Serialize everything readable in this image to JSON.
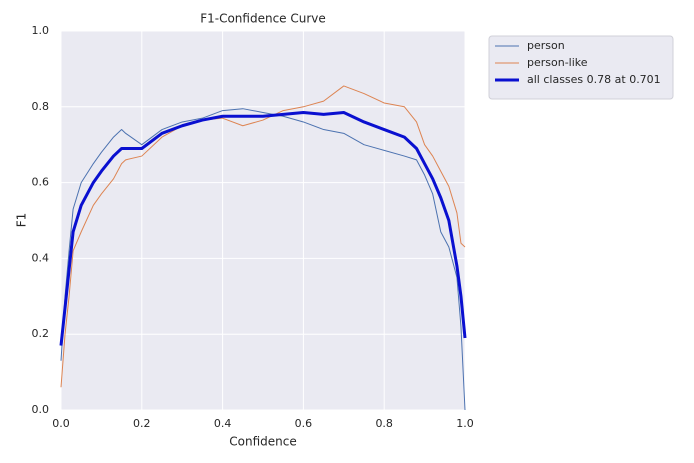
{
  "chart_data": {
    "type": "line",
    "title": "F1-Confidence Curve",
    "x_label": "Confidence",
    "y_label": "F1",
    "x": [
      0,
      0.01,
      0.02,
      0.03,
      0.05,
      0.08,
      0.1,
      0.13,
      0.15,
      0.16,
      0.2,
      0.25,
      0.3,
      0.35,
      0.4,
      0.45,
      0.5,
      0.55,
      0.6,
      0.65,
      0.7,
      0.75,
      0.8,
      0.85,
      0.88,
      0.9,
      0.92,
      0.94,
      0.96,
      0.98,
      0.99,
      1.0
    ],
    "series": [
      {
        "name": "person",
        "color": "#4c72b0",
        "width": 1,
        "values": [
          0.13,
          0.3,
          0.42,
          0.53,
          0.6,
          0.65,
          0.68,
          0.72,
          0.74,
          0.73,
          0.7,
          0.74,
          0.76,
          0.77,
          0.79,
          0.795,
          0.785,
          0.775,
          0.76,
          0.74,
          0.73,
          0.7,
          0.685,
          0.67,
          0.66,
          0.62,
          0.57,
          0.47,
          0.43,
          0.35,
          0.22,
          0.0
        ]
      },
      {
        "name": "person-like",
        "color": "#dd8452",
        "width": 1,
        "values": [
          0.06,
          0.2,
          0.3,
          0.42,
          0.47,
          0.54,
          0.57,
          0.61,
          0.65,
          0.66,
          0.67,
          0.72,
          0.75,
          0.765,
          0.77,
          0.75,
          0.765,
          0.79,
          0.8,
          0.815,
          0.855,
          0.835,
          0.81,
          0.8,
          0.76,
          0.7,
          0.67,
          0.63,
          0.59,
          0.52,
          0.44,
          0.43
        ]
      },
      {
        "name": "all classes 0.78 at 0.701",
        "color": "#0a10d0",
        "width": 3,
        "values": [
          0.17,
          0.27,
          0.37,
          0.47,
          0.54,
          0.6,
          0.63,
          0.67,
          0.69,
          0.69,
          0.69,
          0.73,
          0.75,
          0.765,
          0.775,
          0.775,
          0.775,
          0.78,
          0.785,
          0.78,
          0.785,
          0.76,
          0.74,
          0.72,
          0.69,
          0.65,
          0.61,
          0.56,
          0.5,
          0.38,
          0.3,
          0.19
        ]
      }
    ],
    "xlim": [
      0,
      1
    ],
    "ylim": [
      0,
      1
    ],
    "xticks": [
      {
        "value": 0,
        "label": "0.0"
      },
      {
        "value": 0.2,
        "label": "0.2"
      },
      {
        "value": 0.4,
        "label": "0.4"
      },
      {
        "value": 0.6,
        "label": "0.6"
      },
      {
        "value": 0.8,
        "label": "0.8"
      },
      {
        "value": 1,
        "label": "1.0"
      }
    ],
    "yticks": [
      {
        "value": 0,
        "label": "0.0"
      },
      {
        "value": 0.2,
        "label": "0.2"
      },
      {
        "value": 0.4,
        "label": "0.4"
      },
      {
        "value": 0.6,
        "label": "0.6"
      },
      {
        "value": 0.8,
        "label": "0.8"
      },
      {
        "value": 1,
        "label": "1.0"
      }
    ],
    "grid": true,
    "legend": "outside"
  }
}
